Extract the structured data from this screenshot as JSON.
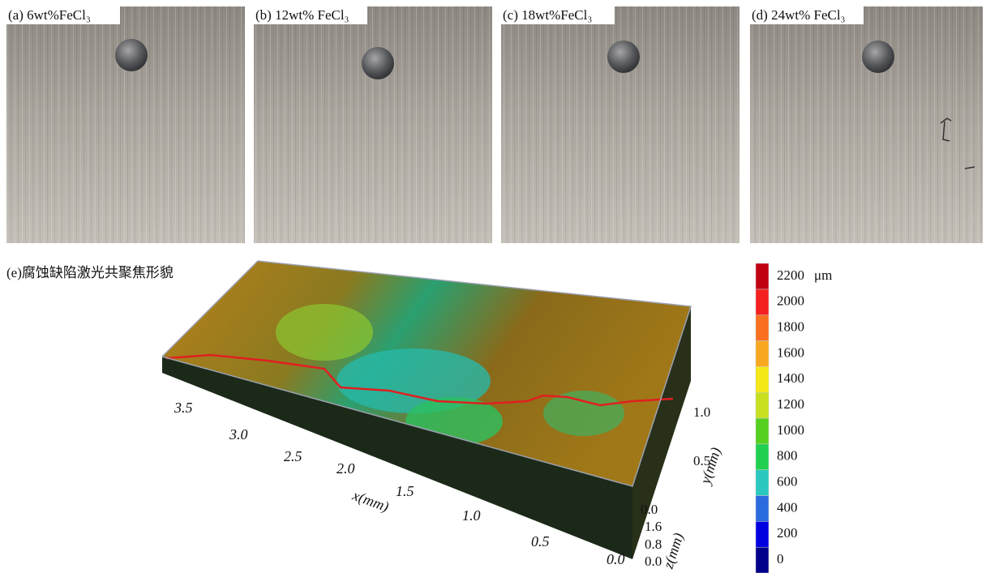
{
  "panels": [
    {
      "label": "(a) 6wt%FeCl₃"
    },
    {
      "label": "(b) 12wt% FeCl₃"
    },
    {
      "label": "(c) 18wt%FeCl₃"
    },
    {
      "label": "(d) 24wt% FeCl₃"
    }
  ],
  "panel_e": {
    "title": "(e)腐蚀缺陷激光共聚焦形貌",
    "x_axis": {
      "label": "x(mm)",
      "ticks": [
        "3.5",
        "3.0",
        "2.5",
        "2.0",
        "1.5",
        "1.0",
        "0.5",
        "0.0"
      ]
    },
    "y_axis": {
      "label": "y(mm)",
      "ticks": [
        "1.0",
        "0.5",
        "0.0"
      ]
    },
    "z_axis": {
      "label": "z(mm)",
      "ticks": [
        "1.6",
        "0.8",
        "0.0"
      ]
    },
    "colorbar": {
      "unit": "μm",
      "ticks": [
        0,
        200,
        400,
        600,
        800,
        1000,
        1200,
        1400,
        1600,
        1800,
        2000,
        2200
      ],
      "colors": [
        "#00008b",
        "#0000e0",
        "#2a6be0",
        "#2bc8c0",
        "#22d050",
        "#55d020",
        "#c8e020",
        "#f5e818",
        "#f8a820",
        "#f87020",
        "#f52020",
        "#c00010"
      ]
    }
  }
}
